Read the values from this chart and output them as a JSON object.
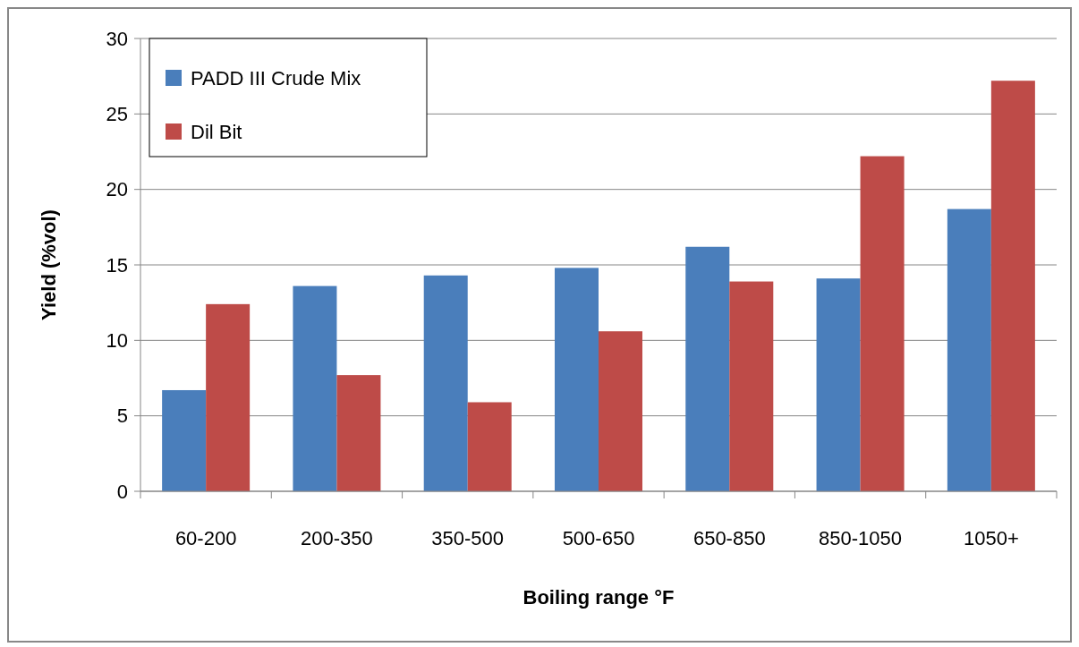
{
  "chart_data": {
    "type": "bar",
    "xlabel": "Boiling range °F",
    "ylabel": "Yield (%vol)",
    "categories": [
      "60-200",
      "200-350",
      "350-500",
      "500-650",
      "650-850",
      "850-1050",
      "1050+"
    ],
    "series": [
      {
        "name": "PADD III Crude Mix",
        "color": "#4a7ebb",
        "values": [
          6.7,
          13.6,
          14.3,
          14.8,
          16.2,
          14.1,
          18.7
        ]
      },
      {
        "name": "Dil Bit",
        "color": "#be4b48",
        "values": [
          12.4,
          7.7,
          5.9,
          10.6,
          13.9,
          22.2,
          27.2
        ]
      }
    ],
    "ylim": [
      0,
      30
    ],
    "yticks": [
      0,
      5,
      10,
      15,
      20,
      25,
      30
    ],
    "grid": "y",
    "legend": "top left"
  }
}
